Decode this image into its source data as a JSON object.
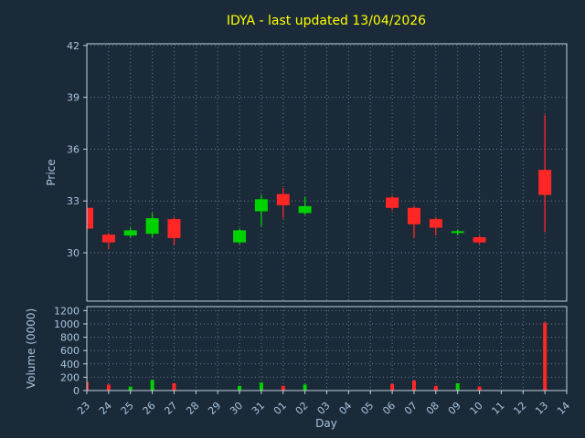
{
  "chart_data": {
    "type": "candlestick",
    "title": "IDYA - last updated 13/04/2026",
    "xlabel": "Day",
    "price_ylabel": "Price",
    "volume_ylabel": "Volume (0000)",
    "x_ticks": [
      "23",
      "24",
      "25",
      "26",
      "27",
      "28",
      "29",
      "30",
      "31",
      "01",
      "02",
      "03",
      "04",
      "05",
      "06",
      "07",
      "08",
      "09",
      "10",
      "11",
      "12",
      "13",
      "14"
    ],
    "price_ticks": [
      30,
      33,
      36,
      39,
      42
    ],
    "price_ylim": [
      27.2,
      42.1
    ],
    "volume_ticks": [
      0,
      200,
      400,
      600,
      800,
      1000,
      1200
    ],
    "volume_ylim": [
      0,
      1260
    ],
    "grid": true,
    "candles": [
      {
        "day": "23",
        "open": 32.6,
        "close": 31.4,
        "high": 32.8,
        "low": 31.2,
        "volume": 130
      },
      {
        "day": "24",
        "open": 31.05,
        "close": 30.6,
        "high": 31.15,
        "low": 30.2,
        "volume": 90
      },
      {
        "day": "25",
        "open": 31.0,
        "close": 31.3,
        "high": 31.45,
        "low": 30.9,
        "volume": 60
      },
      {
        "day": "26",
        "open": 31.1,
        "close": 32.0,
        "high": 32.3,
        "low": 30.9,
        "volume": 160
      },
      {
        "day": "27",
        "open": 31.95,
        "close": 30.85,
        "high": 32.05,
        "low": 30.45,
        "volume": 110
      },
      {
        "day": "30",
        "open": 30.6,
        "close": 31.3,
        "high": 31.4,
        "low": 30.5,
        "volume": 70
      },
      {
        "day": "31",
        "open": 32.4,
        "close": 33.1,
        "high": 33.35,
        "low": 31.55,
        "volume": 120
      },
      {
        "day": "01",
        "open": 33.4,
        "close": 32.75,
        "high": 33.75,
        "low": 32.0,
        "volume": 70
      },
      {
        "day": "02",
        "open": 32.3,
        "close": 32.7,
        "high": 33.25,
        "low": 32.2,
        "volume": 90
      },
      {
        "day": "06",
        "open": 33.2,
        "close": 32.6,
        "high": 33.3,
        "low": 32.45,
        "volume": 100
      },
      {
        "day": "07",
        "open": 32.6,
        "close": 31.65,
        "high": 32.7,
        "low": 30.85,
        "volume": 150
      },
      {
        "day": "08",
        "open": 31.95,
        "close": 31.45,
        "high": 32.05,
        "low": 31.0,
        "volume": 70
      },
      {
        "day": "09",
        "open": 31.15,
        "close": 31.25,
        "high": 31.35,
        "low": 31.0,
        "volume": 110
      },
      {
        "day": "10",
        "open": 30.9,
        "close": 30.6,
        "high": 31.0,
        "low": 30.5,
        "volume": 60
      },
      {
        "day": "13",
        "open": 34.8,
        "close": 33.35,
        "high": 38.0,
        "low": 31.2,
        "volume": 1020
      }
    ],
    "colors": {
      "background": "#1b2a38",
      "up": "#00d200",
      "down": "#ff2626",
      "title": "#ffff00",
      "axis_text": "#a9c4e0",
      "frame": "#c5d2de",
      "grid": "#93a9bd"
    },
    "legend": "none"
  }
}
